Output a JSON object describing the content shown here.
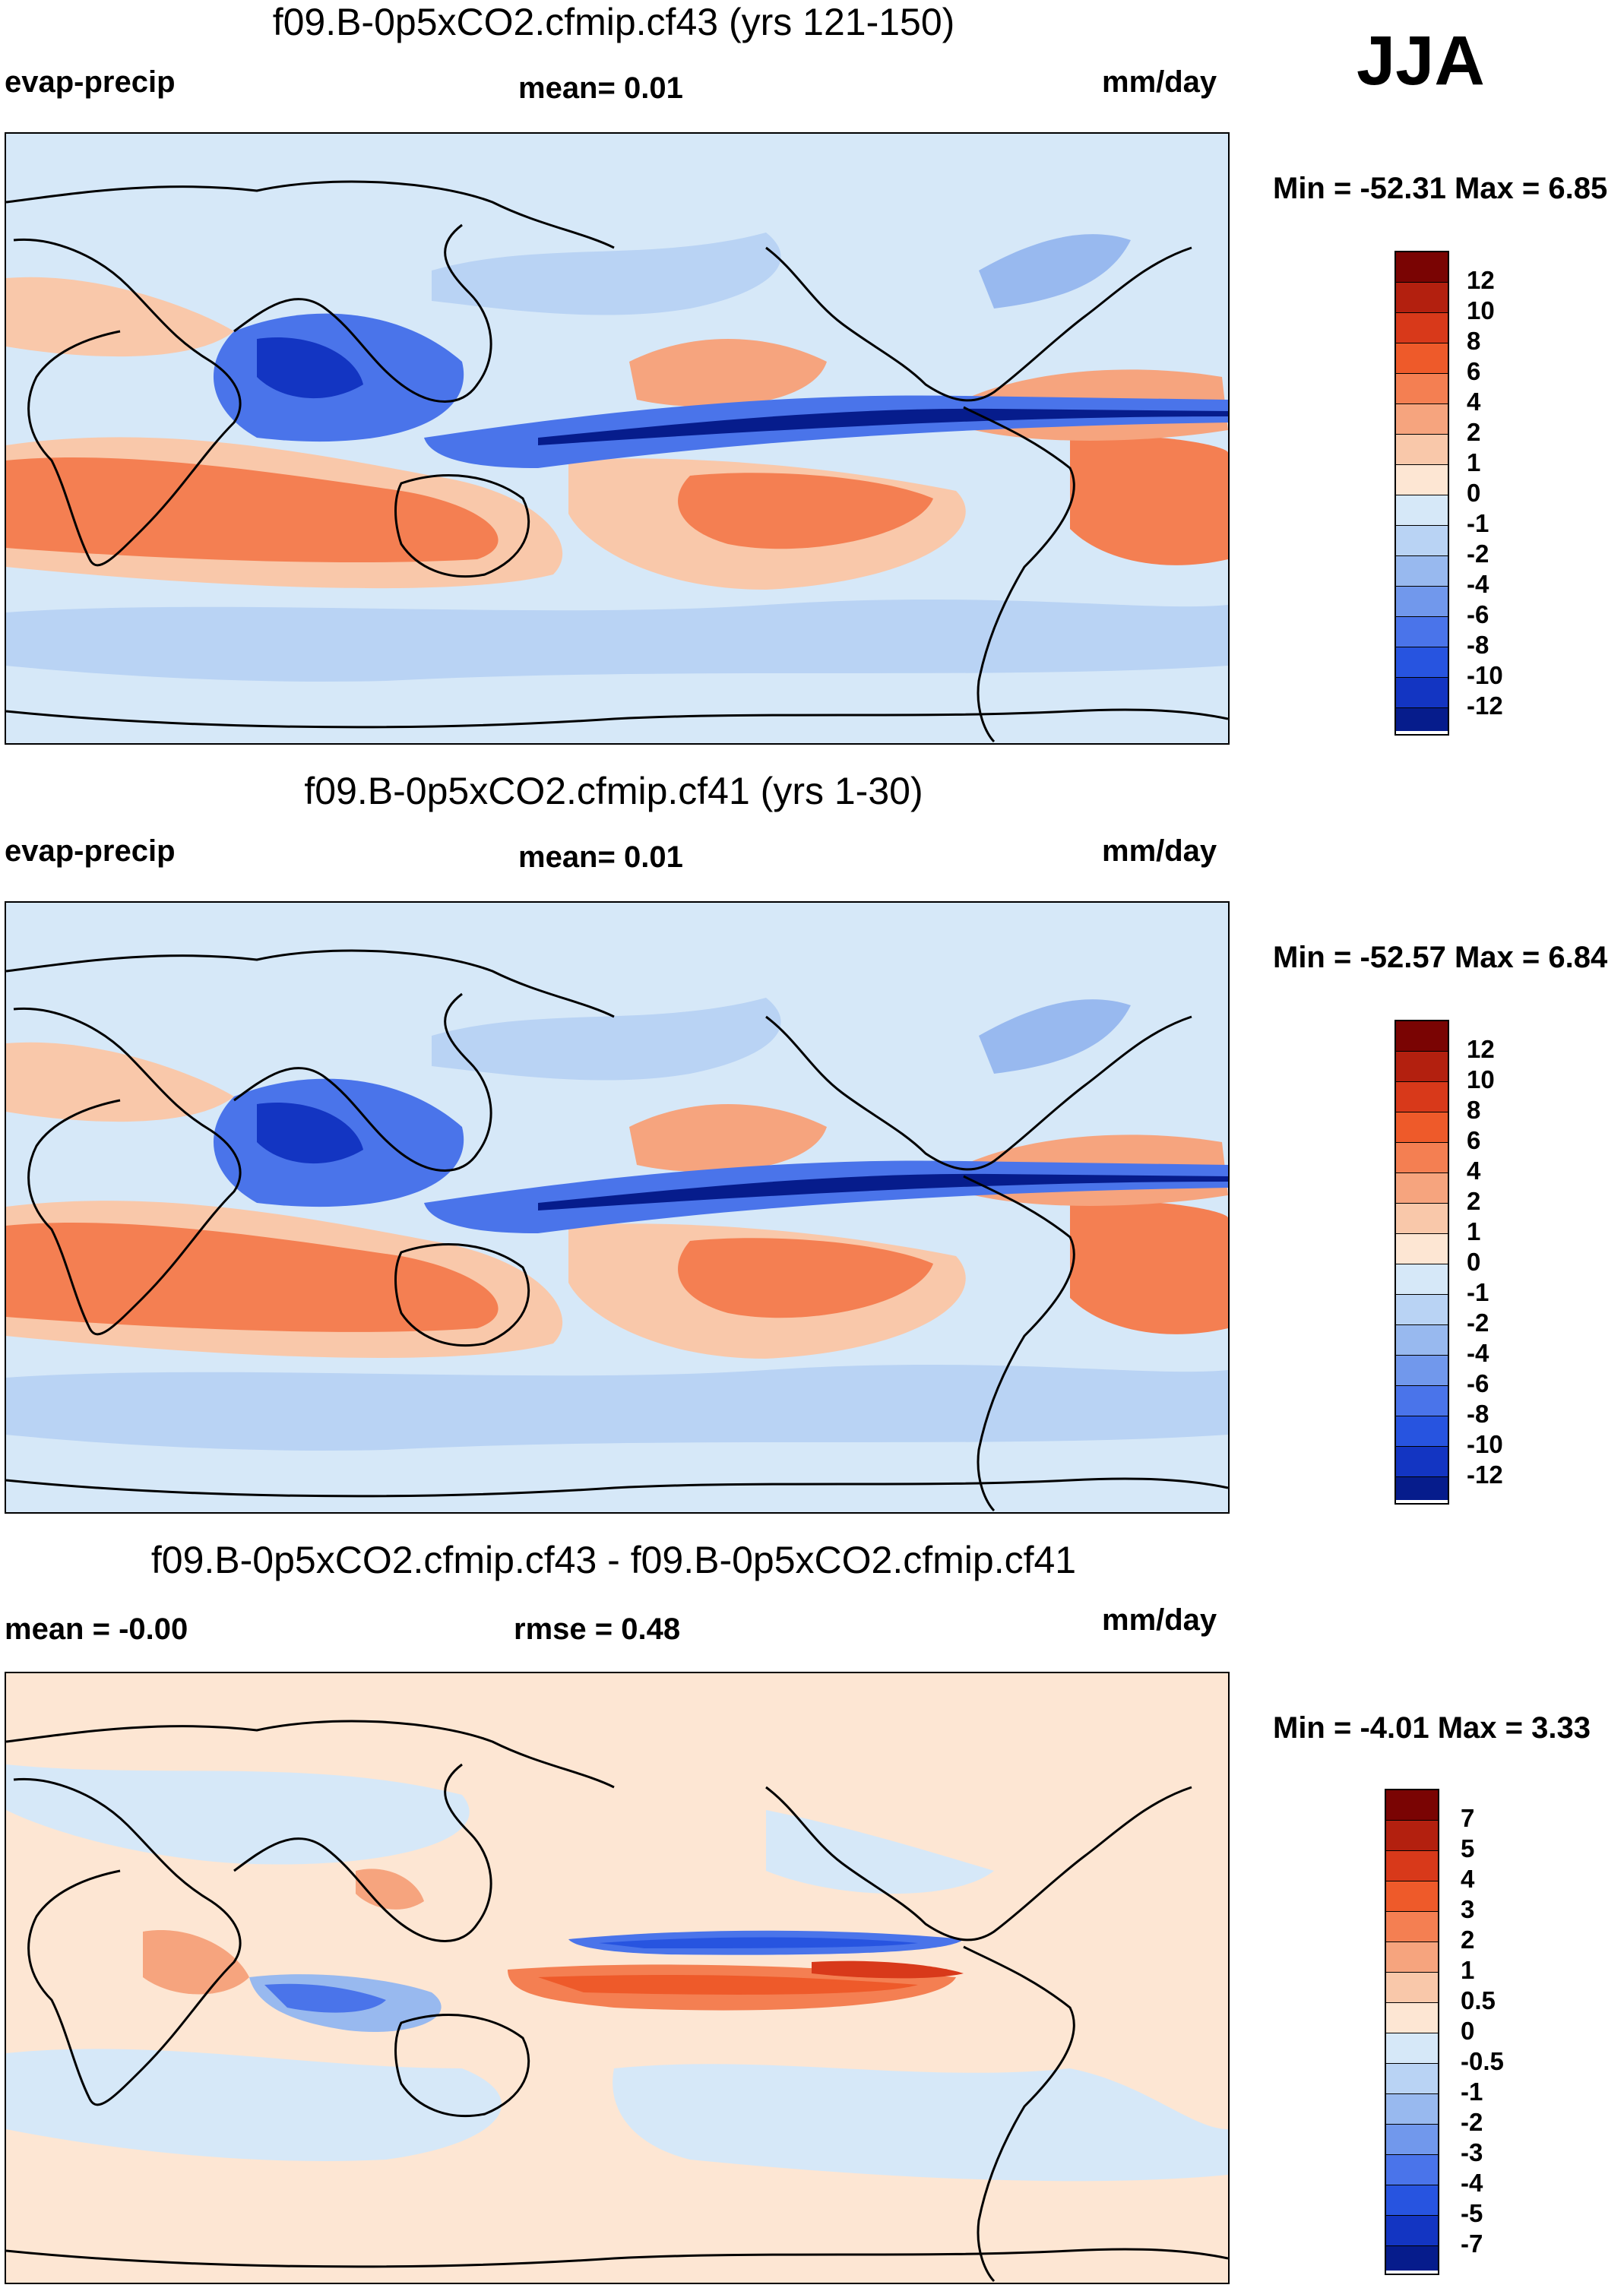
{
  "season": "JJA",
  "panels": [
    {
      "title": "f09.B-0p5xCO2.cfmip.cf43 (yrs 121-150)",
      "left_label": "evap-precip",
      "center_label": "mean=   0.01",
      "units": "mm/day",
      "minmax": "Min = -52.31 Max =   6.85",
      "colorbar": {
        "labels": [
          "12",
          "10",
          "8",
          "6",
          "4",
          "2",
          "1",
          "0",
          "-1",
          "-2",
          "-4",
          "-6",
          "-8",
          "-10",
          "-12"
        ],
        "colors": [
          "#7a0403",
          "#b3200f",
          "#d8391a",
          "#ee5a2a",
          "#f47f52",
          "#f6a47e",
          "#f9c8aa",
          "#fde6d3",
          "#d6e8f8",
          "#b9d3f4",
          "#98b9ef",
          "#7198ec",
          "#4a74ea",
          "#2754e0",
          "#1335c2",
          "#061c8c"
        ]
      }
    },
    {
      "title": "f09.B-0p5xCO2.cfmip.cf41 (yrs 1-30)",
      "left_label": "evap-precip",
      "center_label": "mean=   0.01",
      "units": "mm/day",
      "minmax": "Min = -52.57 Max =   6.84",
      "colorbar": {
        "labels": [
          "12",
          "10",
          "8",
          "6",
          "4",
          "2",
          "1",
          "0",
          "-1",
          "-2",
          "-4",
          "-6",
          "-8",
          "-10",
          "-12"
        ],
        "colors": [
          "#7a0403",
          "#b3200f",
          "#d8391a",
          "#ee5a2a",
          "#f47f52",
          "#f6a47e",
          "#f9c8aa",
          "#fde6d3",
          "#d6e8f8",
          "#b9d3f4",
          "#98b9ef",
          "#7198ec",
          "#4a74ea",
          "#2754e0",
          "#1335c2",
          "#061c8c"
        ]
      }
    },
    {
      "title": "f09.B-0p5xCO2.cfmip.cf43 - f09.B-0p5xCO2.cfmip.cf41",
      "left_label": "mean =  -0.00",
      "center_label": "rmse =   0.48",
      "units": "mm/day",
      "minmax": "Min =  -4.01 Max =   3.33",
      "colorbar": {
        "labels": [
          "7",
          "5",
          "4",
          "3",
          "2",
          "1",
          "0.5",
          "0",
          "-0.5",
          "-1",
          "-2",
          "-3",
          "-4",
          "-5",
          "-7"
        ],
        "colors": [
          "#7a0403",
          "#b3200f",
          "#d8391a",
          "#ee5a2a",
          "#f47f52",
          "#f6a47e",
          "#f9c8aa",
          "#fde6d3",
          "#d6e8f8",
          "#b9d3f4",
          "#98b9ef",
          "#7198ec",
          "#4a74ea",
          "#2754e0",
          "#1335c2",
          "#061c8c"
        ]
      }
    }
  ]
}
